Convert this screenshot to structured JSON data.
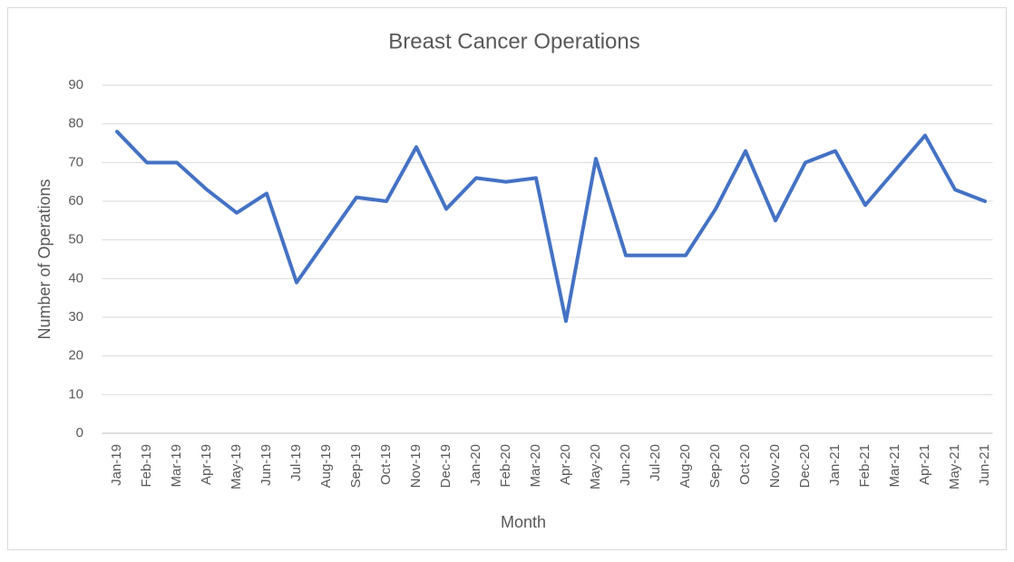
{
  "chart_data": {
    "type": "line",
    "title": "Breast Cancer Operations",
    "x_label": "Month",
    "y_label": "Number of Operations",
    "categories": [
      "Jan-19",
      "Feb-19",
      "Mar-19",
      "Apr-19",
      "May-19",
      "Jun-19",
      "Jul-19",
      "Aug-19",
      "Sep-19",
      "Oct-19",
      "Nov-19",
      "Dec-19",
      "Jan-20",
      "Feb-20",
      "Mar-20",
      "Apr-20",
      "May-20",
      "Jun-20",
      "Jul-20",
      "Aug-20",
      "Sep-20",
      "Oct-20",
      "Nov-20",
      "Dec-20",
      "Jan-21",
      "Feb-21",
      "Mar-21",
      "Apr-21",
      "May-21",
      "Jun-21"
    ],
    "series": [
      {
        "name": "Number of Operations",
        "color": "#4472c4",
        "values": [
          78,
          70,
          70,
          63,
          57,
          62,
          39,
          50,
          61,
          60,
          74,
          58,
          66,
          65,
          66,
          29,
          71,
          46,
          46,
          46,
          58,
          73,
          55,
          70,
          73,
          59,
          68,
          77,
          63,
          60
        ]
      }
    ],
    "ylim": [
      0,
      90
    ],
    "yticks": [
      0,
      10,
      20,
      30,
      40,
      50,
      60,
      70,
      80,
      90
    ],
    "grid": true
  }
}
